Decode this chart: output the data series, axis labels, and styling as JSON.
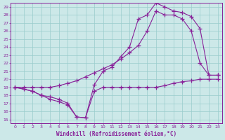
{
  "background_color": "#cce8e8",
  "grid_color": "#99cccc",
  "line_color": "#882299",
  "xlabel": "Windchill (Refroidissement éolien,°C)",
  "xlim": [
    -0.5,
    23.5
  ],
  "ylim": [
    14.5,
    29.5
  ],
  "yticks": [
    15,
    16,
    17,
    18,
    19,
    20,
    21,
    22,
    23,
    24,
    25,
    26,
    27,
    28,
    29
  ],
  "xticks": [
    0,
    1,
    2,
    3,
    4,
    5,
    6,
    7,
    8,
    9,
    10,
    11,
    12,
    13,
    14,
    15,
    16,
    17,
    18,
    19,
    20,
    21,
    22,
    23
  ],
  "line1_x": [
    0,
    1,
    2,
    3,
    4,
    5,
    6,
    7,
    8,
    9,
    10,
    11,
    12,
    13,
    14,
    15,
    16,
    17,
    18,
    19,
    20,
    21,
    22,
    23
  ],
  "line1_y": [
    19,
    18.8,
    18.5,
    18.0,
    17.5,
    17.2,
    16.8,
    15.3,
    15.2,
    18.5,
    19.0,
    19.0,
    19.0,
    19.0,
    19.0,
    19.0,
    19.0,
    19.2,
    19.5,
    19.7,
    19.8,
    20.0,
    20.0,
    20.0
  ],
  "line2_x": [
    0,
    1,
    2,
    3,
    4,
    5,
    6,
    7,
    8,
    9,
    10,
    11,
    12,
    13,
    14,
    15,
    16,
    17,
    18,
    19,
    20,
    21,
    22,
    23
  ],
  "line2_y": [
    19,
    19.0,
    19.0,
    19.0,
    19.0,
    19.2,
    19.5,
    19.8,
    20.3,
    20.8,
    21.3,
    21.8,
    22.5,
    23.3,
    24.2,
    26.0,
    28.5,
    28.0,
    28.0,
    27.5,
    26.0,
    22.0,
    20.5,
    20.5
  ],
  "line3_x": [
    0,
    2,
    3,
    4,
    5,
    6,
    7,
    8,
    9,
    10,
    11,
    12,
    13,
    14,
    15,
    16,
    17,
    18,
    19,
    20,
    21,
    22,
    23
  ],
  "line3_y": [
    19,
    18.5,
    18.0,
    17.8,
    17.5,
    17.0,
    15.3,
    15.2,
    19.3,
    21.0,
    21.5,
    22.8,
    24.0,
    27.5,
    28.0,
    29.5,
    29.0,
    28.5,
    28.3,
    27.8,
    26.3,
    20.5,
    20.5
  ]
}
